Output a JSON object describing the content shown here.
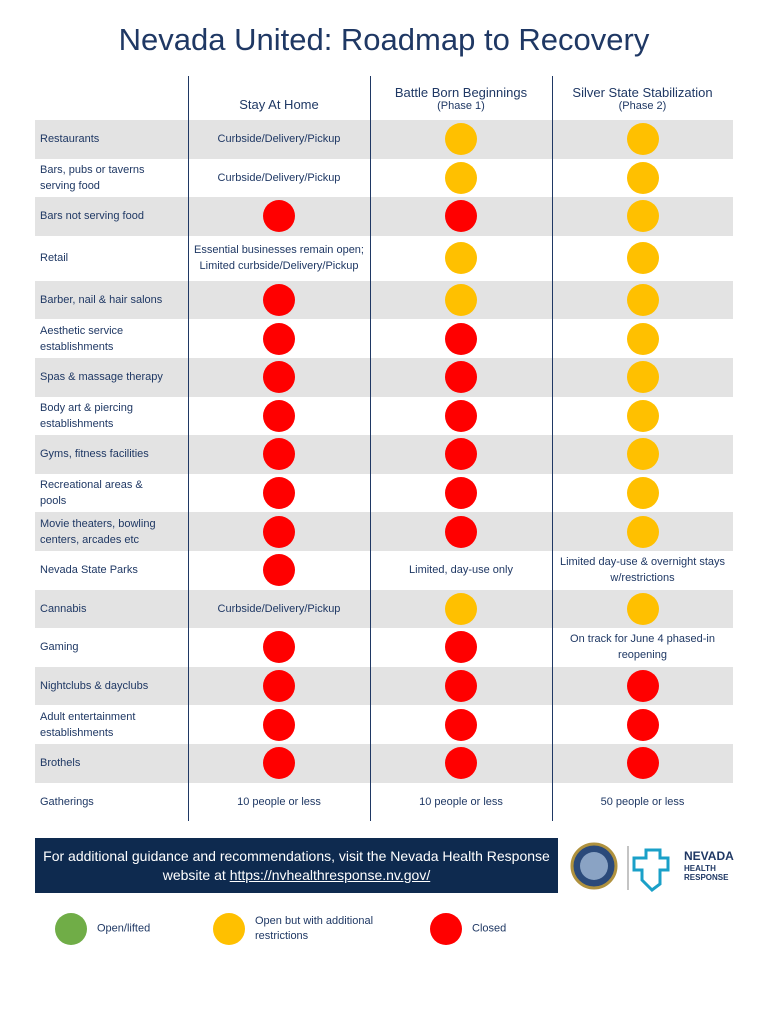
{
  "title": "Nevada United: Roadmap to Recovery",
  "columns": [
    {
      "title": "Stay At Home"
    },
    {
      "title": "Battle Born Beginnings",
      "subtitle": "(Phase 1)"
    },
    {
      "title": "Silver State Stabilization",
      "subtitle": "(Phase 2)"
    }
  ],
  "rows": [
    {
      "label": "Restaurants",
      "cells": [
        "Curbside/Delivery/Pickup",
        {
          "color": "#ffc000"
        },
        {
          "color": "#ffc000"
        }
      ]
    },
    {
      "label": "Bars, pubs or taverns serving food",
      "cells": [
        "Curbside/Delivery/Pickup",
        {
          "color": "#ffc000"
        },
        {
          "color": "#ffc000"
        }
      ]
    },
    {
      "label": "Bars not serving food",
      "cells": [
        {
          "color": "#ff0000"
        },
        {
          "color": "#ff0000"
        },
        {
          "color": "#ffc000"
        }
      ]
    },
    {
      "label": "Retail",
      "cells": [
        "Essential businesses remain open; Limited curbside/Delivery/Pickup",
        {
          "color": "#ffc000"
        },
        {
          "color": "#ffc000"
        }
      ]
    },
    {
      "label": "Barber, nail & hair salons",
      "cells": [
        {
          "color": "#ff0000"
        },
        {
          "color": "#ffc000"
        },
        {
          "color": "#ffc000"
        }
      ]
    },
    {
      "label": "Aesthetic service establishments",
      "cells": [
        {
          "color": "#ff0000"
        },
        {
          "color": "#ff0000"
        },
        {
          "color": "#ffc000"
        }
      ]
    },
    {
      "label": "Spas & massage therapy",
      "cells": [
        {
          "color": "#ff0000"
        },
        {
          "color": "#ff0000"
        },
        {
          "color": "#ffc000"
        }
      ]
    },
    {
      "label": "Body art & piercing establishments",
      "cells": [
        {
          "color": "#ff0000"
        },
        {
          "color": "#ff0000"
        },
        {
          "color": "#ffc000"
        }
      ]
    },
    {
      "label": "Gyms, fitness facilities",
      "cells": [
        {
          "color": "#ff0000"
        },
        {
          "color": "#ff0000"
        },
        {
          "color": "#ffc000"
        }
      ]
    },
    {
      "label": "Recreational areas & pools",
      "cells": [
        {
          "color": "#ff0000"
        },
        {
          "color": "#ff0000"
        },
        {
          "color": "#ffc000"
        }
      ]
    },
    {
      "label": "Movie theaters, bowling centers, arcades etc",
      "cells": [
        {
          "color": "#ff0000"
        },
        {
          "color": "#ff0000"
        },
        {
          "color": "#ffc000"
        }
      ]
    },
    {
      "label": "Nevada State Parks",
      "cells": [
        {
          "color": "#ff0000"
        },
        "Limited, day-use only",
        "Limited day-use & overnight stays w/restrictions"
      ]
    },
    {
      "label": "Cannabis",
      "cells": [
        "Curbside/Delivery/Pickup",
        {
          "color": "#ffc000"
        },
        {
          "color": "#ffc000"
        }
      ]
    },
    {
      "label": "Gaming",
      "cells": [
        {
          "color": "#ff0000"
        },
        {
          "color": "#ff0000"
        },
        "On track for June 4 phased-in reopening"
      ]
    },
    {
      "label": "Nightclubs & dayclubs",
      "cells": [
        {
          "color": "#ff0000"
        },
        {
          "color": "#ff0000"
        },
        {
          "color": "#ff0000"
        }
      ]
    },
    {
      "label": "Adult entertainment establishments",
      "cells": [
        {
          "color": "#ff0000"
        },
        {
          "color": "#ff0000"
        },
        {
          "color": "#ff0000"
        }
      ]
    },
    {
      "label": "Brothels",
      "cells": [
        {
          "color": "#ff0000"
        },
        {
          "color": "#ff0000"
        },
        {
          "color": "#ff0000"
        }
      ]
    },
    {
      "label": "Gatherings",
      "cells": [
        "10 people or less",
        "10 people or less",
        "50 people or less"
      ]
    }
  ],
  "banner": {
    "text": "For additional guidance and recommendations, visit the Nevada Health Response website at",
    "link": "https://nvhealthresponse.nv.gov/"
  },
  "logo": {
    "name": "NEVADA",
    "line1": "HEALTH",
    "line2": "RESPONSE"
  },
  "legend": [
    {
      "label": "Open/lifted",
      "color": "#70ad47"
    },
    {
      "label": "Open but with additional restrictions",
      "color": "#ffc000"
    },
    {
      "label": "Closed",
      "color": "#ff0000"
    }
  ]
}
